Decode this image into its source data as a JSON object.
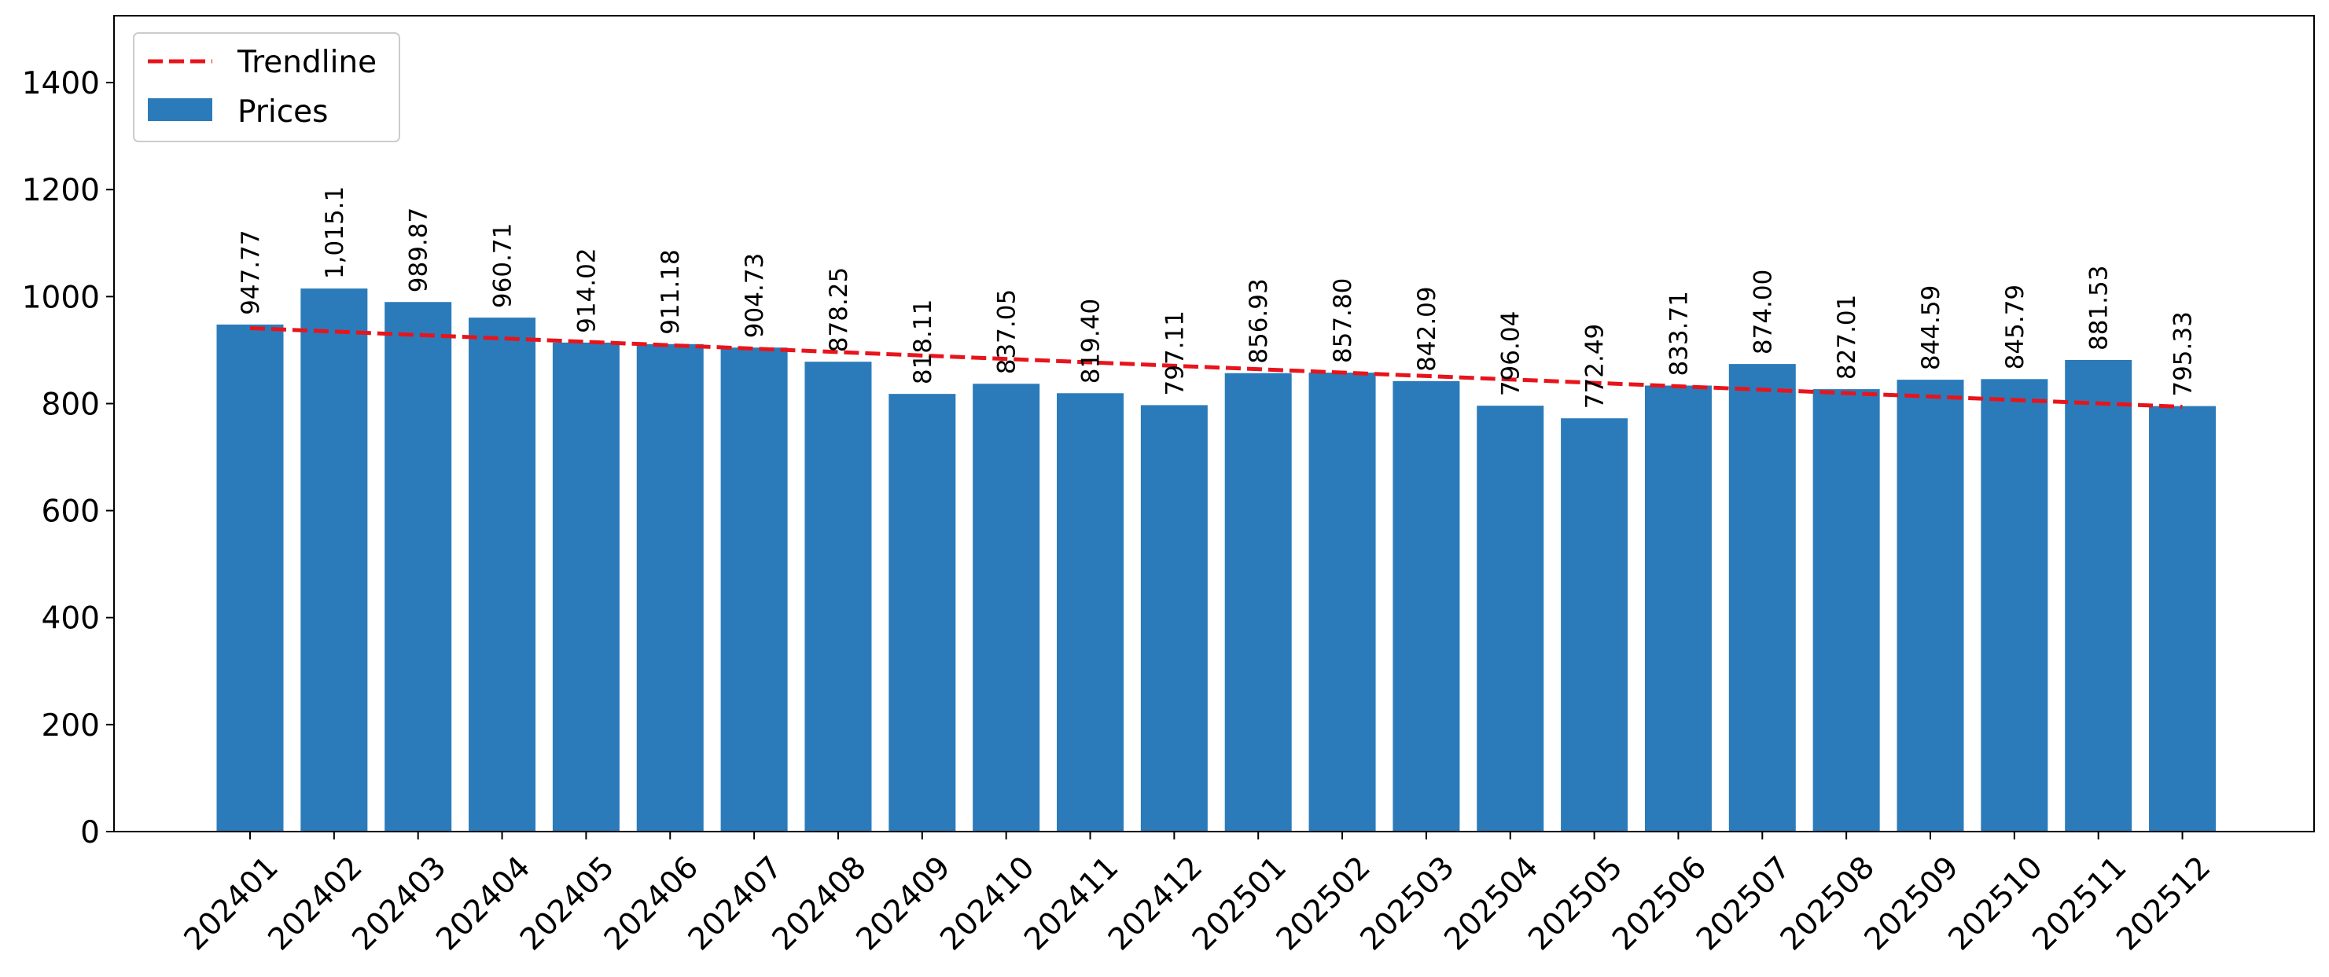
{
  "chart_data": {
    "type": "bar",
    "title": "",
    "xlabel": "",
    "ylabel": "",
    "ylim": [
      0,
      1525
    ],
    "yticks": [
      0,
      200,
      400,
      600,
      800,
      1000,
      1200,
      1400
    ],
    "grid": false,
    "legend": {
      "placement": "top-left",
      "entries": [
        "Trendline",
        "Prices"
      ]
    },
    "categories": [
      "202401",
      "202402",
      "202403",
      "202404",
      "202405",
      "202406",
      "202407",
      "202408",
      "202409",
      "202410",
      "202411",
      "202412",
      "202501",
      "202502",
      "202503",
      "202504",
      "202505",
      "202506",
      "202507",
      "202508",
      "202509",
      "202510",
      "202511",
      "202512"
    ],
    "series": [
      {
        "name": "Prices",
        "type": "bar",
        "color": "#2b7bba",
        "values": [
          947.77,
          1015.1,
          989.87,
          960.71,
          914.02,
          911.18,
          904.73,
          878.25,
          818.11,
          837.05,
          819.4,
          797.11,
          856.93,
          857.8,
          842.09,
          796.04,
          772.49,
          833.71,
          874.0,
          827.01,
          844.59,
          845.79,
          881.53,
          795.33
        ],
        "labels": [
          "947.77",
          "1,015.1",
          "989.87",
          "960.71",
          "914.02",
          "911.18",
          "904.73",
          "878.25",
          "818.11",
          "837.05",
          "819.40",
          "797.11",
          "856.93",
          "857.80",
          "842.09",
          "796.04",
          "772.49",
          "833.71",
          "874.00",
          "827.01",
          "844.59",
          "845.79",
          "881.53",
          "795.33"
        ]
      },
      {
        "name": "Trendline",
        "type": "line",
        "style": "dashed",
        "color": "#e8141b",
        "start": 941,
        "end": 794
      }
    ]
  }
}
